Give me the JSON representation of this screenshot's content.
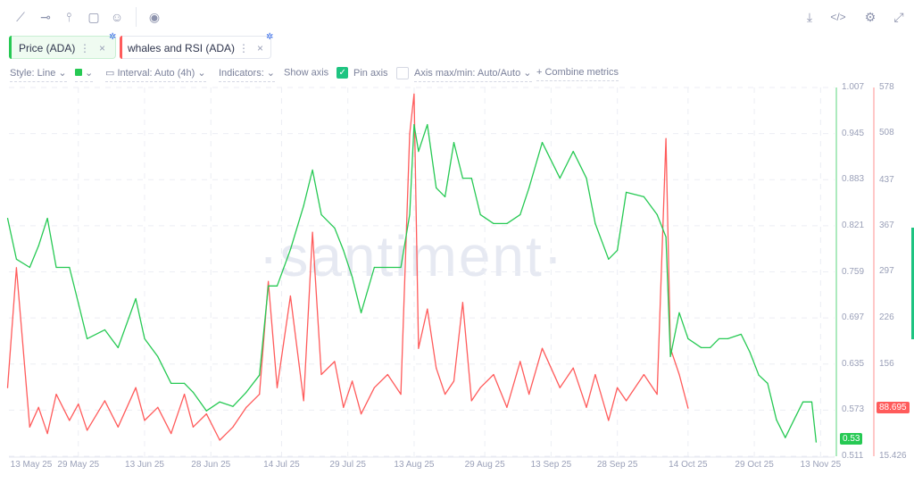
{
  "toolbar": {
    "icons": [
      "line-draw-icon",
      "horizontal-ray-icon",
      "vertical-line-icon",
      "note-icon",
      "emoji-icon",
      "eye-icon"
    ],
    "right_icons": [
      "download-icon",
      "code-icon",
      "gear-icon",
      "fullscreen-icon"
    ]
  },
  "tabs": [
    {
      "label": "Price (ADA)",
      "color": "#26c953"
    },
    {
      "label": "whales and RSI (ADA)",
      "color": "#ff5b5b"
    }
  ],
  "options": {
    "style": "Style: Line",
    "color": "#26c953",
    "interval": "Interval: Auto (4h)",
    "indicators": "Indicators:",
    "show_axis": "Show axis",
    "show_axis_checked": true,
    "pin_axis": "Pin axis",
    "pin_axis_checked": false,
    "axis_minmax": "Axis max/min: Auto/Auto",
    "combine": "Combine metrics"
  },
  "watermark": "·santiment·",
  "chart_data": {
    "type": "line",
    "x_ticks": [
      "13 May 25",
      "29 May 25",
      "13 Jun 25",
      "28 Jun 25",
      "14 Jul 25",
      "29 Jul 25",
      "13 Aug 25",
      "29 Aug 25",
      "13 Sep 25",
      "28 Sep 25",
      "14 Oct 25",
      "29 Oct 25",
      "13 Nov 25"
    ],
    "x_tick_dates": [
      "2025-05-13",
      "2025-05-29",
      "2025-06-13",
      "2025-06-28",
      "2025-07-14",
      "2025-07-29",
      "2025-08-13",
      "2025-08-29",
      "2025-09-13",
      "2025-09-28",
      "2025-10-14",
      "2025-10-29",
      "2025-11-13"
    ],
    "price_axis": {
      "ticks": [
        "1.007",
        "0.945",
        "0.883",
        "0.821",
        "0.759",
        "0.697",
        "0.635",
        "0.573",
        "0.511"
      ],
      "range": [
        0.511,
        1.007
      ],
      "color": "#26c953",
      "last_value": "0.53"
    },
    "whales_axis": {
      "ticks": [
        "578",
        "508",
        "437",
        "367",
        "297",
        "226",
        "156",
        "88.695",
        "15.426"
      ],
      "range": [
        15.426,
        578
      ],
      "color": "#ff5b5b",
      "last_value": "88.695"
    },
    "grid": true,
    "series": [
      {
        "name": "Price (ADA)",
        "color": "#26c953",
        "axis": "price",
        "points": [
          [
            "2025-05-13",
            0.831
          ],
          [
            "2025-05-15",
            0.776
          ],
          [
            "2025-05-18",
            0.765
          ],
          [
            "2025-05-20",
            0.794
          ],
          [
            "2025-05-22",
            0.831
          ],
          [
            "2025-05-24",
            0.765
          ],
          [
            "2025-05-27",
            0.765
          ],
          [
            "2025-05-29",
            0.717
          ],
          [
            "2025-05-31",
            0.669
          ],
          [
            "2025-06-04",
            0.681
          ],
          [
            "2025-06-07",
            0.657
          ],
          [
            "2025-06-11",
            0.723
          ],
          [
            "2025-06-13",
            0.669
          ],
          [
            "2025-06-16",
            0.645
          ],
          [
            "2025-06-19",
            0.609
          ],
          [
            "2025-06-22",
            0.609
          ],
          [
            "2025-06-24",
            0.597
          ],
          [
            "2025-06-27",
            0.572
          ],
          [
            "2025-06-30",
            0.584
          ],
          [
            "2025-07-03",
            0.578
          ],
          [
            "2025-07-06",
            0.597
          ],
          [
            "2025-07-09",
            0.62
          ],
          [
            "2025-07-11",
            0.74
          ],
          [
            "2025-07-13",
            0.74
          ],
          [
            "2025-07-16",
            0.789
          ],
          [
            "2025-07-19",
            0.848
          ],
          [
            "2025-07-21",
            0.896
          ],
          [
            "2025-07-23",
            0.836
          ],
          [
            "2025-07-26",
            0.818
          ],
          [
            "2025-07-28",
            0.788
          ],
          [
            "2025-07-30",
            0.752
          ],
          [
            "2025-08-01",
            0.704
          ],
          [
            "2025-08-04",
            0.765
          ],
          [
            "2025-08-07",
            0.765
          ],
          [
            "2025-08-10",
            0.765
          ],
          [
            "2025-08-12",
            0.836
          ],
          [
            "2025-08-13",
            0.957
          ],
          [
            "2025-08-14",
            0.921
          ],
          [
            "2025-08-16",
            0.957
          ],
          [
            "2025-08-18",
            0.872
          ],
          [
            "2025-08-20",
            0.86
          ],
          [
            "2025-08-22",
            0.933
          ],
          [
            "2025-08-24",
            0.885
          ],
          [
            "2025-08-26",
            0.885
          ],
          [
            "2025-08-28",
            0.836
          ],
          [
            "2025-08-31",
            0.824
          ],
          [
            "2025-09-03",
            0.824
          ],
          [
            "2025-09-06",
            0.836
          ],
          [
            "2025-09-08",
            0.872
          ],
          [
            "2025-09-11",
            0.933
          ],
          [
            "2025-09-15",
            0.885
          ],
          [
            "2025-09-18",
            0.921
          ],
          [
            "2025-09-21",
            0.885
          ],
          [
            "2025-09-23",
            0.824
          ],
          [
            "2025-09-26",
            0.776
          ],
          [
            "2025-09-28",
            0.788
          ],
          [
            "2025-09-30",
            0.866
          ],
          [
            "2025-10-04",
            0.86
          ],
          [
            "2025-10-07",
            0.836
          ],
          [
            "2025-10-09",
            0.806
          ],
          [
            "2025-10-10",
            0.645
          ],
          [
            "2025-10-12",
            0.704
          ],
          [
            "2025-10-14",
            0.669
          ],
          [
            "2025-10-17",
            0.657
          ],
          [
            "2025-10-19",
            0.657
          ],
          [
            "2025-10-21",
            0.669
          ],
          [
            "2025-10-23",
            0.669
          ],
          [
            "2025-10-26",
            0.675
          ],
          [
            "2025-10-28",
            0.651
          ],
          [
            "2025-10-30",
            0.62
          ],
          [
            "2025-11-01",
            0.609
          ],
          [
            "2025-11-03",
            0.56
          ],
          [
            "2025-11-05",
            0.536
          ],
          [
            "2025-11-07",
            0.56
          ],
          [
            "2025-11-09",
            0.584
          ],
          [
            "2025-11-11",
            0.584
          ],
          [
            "2025-11-12",
            0.53
          ]
        ]
      },
      {
        "name": "whales and RSI (ADA)",
        "color": "#ff5b5b",
        "axis": "whales",
        "points": [
          [
            "2025-05-13",
            120
          ],
          [
            "2025-05-15",
            303
          ],
          [
            "2025-05-18",
            60
          ],
          [
            "2025-05-20",
            90
          ],
          [
            "2025-05-22",
            50
          ],
          [
            "2025-05-24",
            110
          ],
          [
            "2025-05-27",
            70
          ],
          [
            "2025-05-29",
            95
          ],
          [
            "2025-05-31",
            55
          ],
          [
            "2025-06-04",
            100
          ],
          [
            "2025-06-07",
            60
          ],
          [
            "2025-06-11",
            120
          ],
          [
            "2025-06-13",
            70
          ],
          [
            "2025-06-16",
            90
          ],
          [
            "2025-06-19",
            50
          ],
          [
            "2025-06-22",
            110
          ],
          [
            "2025-06-24",
            60
          ],
          [
            "2025-06-27",
            80
          ],
          [
            "2025-06-30",
            40
          ],
          [
            "2025-07-03",
            60
          ],
          [
            "2025-07-06",
            90
          ],
          [
            "2025-07-09",
            110
          ],
          [
            "2025-07-11",
            282
          ],
          [
            "2025-07-13",
            120
          ],
          [
            "2025-07-16",
            260
          ],
          [
            "2025-07-19",
            100
          ],
          [
            "2025-07-21",
            357
          ],
          [
            "2025-07-23",
            140
          ],
          [
            "2025-07-26",
            160
          ],
          [
            "2025-07-28",
            90
          ],
          [
            "2025-07-30",
            130
          ],
          [
            "2025-08-01",
            80
          ],
          [
            "2025-08-04",
            120
          ],
          [
            "2025-08-07",
            140
          ],
          [
            "2025-08-10",
            110
          ],
          [
            "2025-08-12",
            507
          ],
          [
            "2025-08-13",
            568
          ],
          [
            "2025-08-14",
            180
          ],
          [
            "2025-08-16",
            240
          ],
          [
            "2025-08-18",
            150
          ],
          [
            "2025-08-20",
            110
          ],
          [
            "2025-08-22",
            130
          ],
          [
            "2025-08-24",
            250
          ],
          [
            "2025-08-26",
            100
          ],
          [
            "2025-08-28",
            120
          ],
          [
            "2025-08-31",
            140
          ],
          [
            "2025-09-03",
            90
          ],
          [
            "2025-09-06",
            160
          ],
          [
            "2025-09-08",
            110
          ],
          [
            "2025-09-11",
            180
          ],
          [
            "2025-09-15",
            120
          ],
          [
            "2025-09-18",
            150
          ],
          [
            "2025-09-21",
            90
          ],
          [
            "2025-09-23",
            140
          ],
          [
            "2025-09-26",
            70
          ],
          [
            "2025-09-28",
            120
          ],
          [
            "2025-09-30",
            100
          ],
          [
            "2025-10-04",
            140
          ],
          [
            "2025-10-07",
            110
          ],
          [
            "2025-10-09",
            500
          ],
          [
            "2025-10-10",
            180
          ],
          [
            "2025-10-12",
            140
          ],
          [
            "2025-10-14",
            88.695
          ]
        ]
      }
    ]
  }
}
